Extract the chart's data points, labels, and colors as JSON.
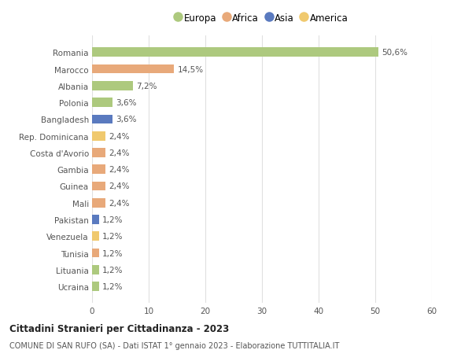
{
  "categories": [
    "Romania",
    "Marocco",
    "Albania",
    "Polonia",
    "Bangladesh",
    "Rep. Dominicana",
    "Costa d'Avorio",
    "Gambia",
    "Guinea",
    "Mali",
    "Pakistan",
    "Venezuela",
    "Tunisia",
    "Lituania",
    "Ucraina"
  ],
  "values": [
    50.6,
    14.5,
    7.2,
    3.6,
    3.6,
    2.4,
    2.4,
    2.4,
    2.4,
    2.4,
    1.2,
    1.2,
    1.2,
    1.2,
    1.2
  ],
  "labels": [
    "50,6%",
    "14,5%",
    "7,2%",
    "3,6%",
    "3,6%",
    "2,4%",
    "2,4%",
    "2,4%",
    "2,4%",
    "2,4%",
    "1,2%",
    "1,2%",
    "1,2%",
    "1,2%",
    "1,2%"
  ],
  "continents": [
    "Europa",
    "Africa",
    "Europa",
    "Europa",
    "Asia",
    "America",
    "Africa",
    "Africa",
    "Africa",
    "Africa",
    "Asia",
    "America",
    "Africa",
    "Europa",
    "Europa"
  ],
  "continent_colors": {
    "Europa": "#adc97e",
    "Africa": "#e8a97a",
    "Asia": "#5a7abf",
    "America": "#f0c96e"
  },
  "legend_order": [
    "Europa",
    "Africa",
    "Asia",
    "America"
  ],
  "title": "Cittadini Stranieri per Cittadinanza - 2023",
  "subtitle": "COMUNE DI SAN RUFO (SA) - Dati ISTAT 1° gennaio 2023 - Elaborazione TUTTITALIA.IT",
  "xlim": [
    0,
    60
  ],
  "xticks": [
    0,
    10,
    20,
    30,
    40,
    50,
    60
  ],
  "bg_color": "#ffffff",
  "grid_color": "#e0e0e0",
  "bar_height": 0.55
}
